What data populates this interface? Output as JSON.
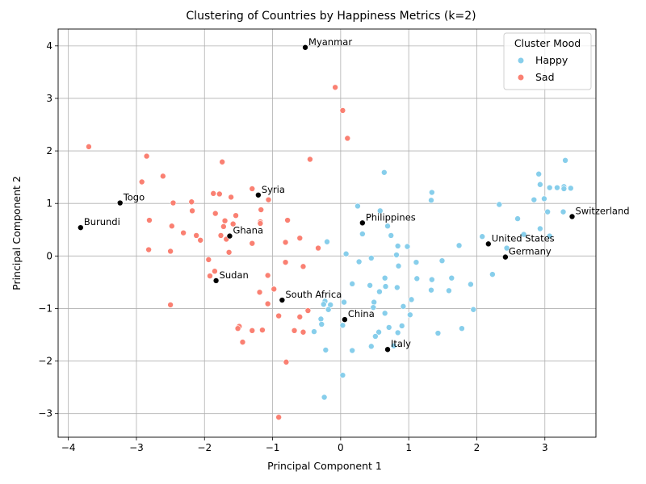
{
  "chart_data": {
    "type": "scatter",
    "title": "Clustering of Countries by Happiness Metrics (k=2)",
    "xlabel": "Principal Component 1",
    "ylabel": "Principal Component 2",
    "xlim": [
      -4.15,
      3.75
    ],
    "ylim": [
      -3.45,
      4.32
    ],
    "xticks": [
      -4,
      -3,
      -2,
      -1,
      0,
      1,
      2,
      3
    ],
    "yticks": [
      -3,
      -2,
      -1,
      0,
      1,
      2,
      3,
      4
    ],
    "grid": true,
    "legend": {
      "title": "Cluster Mood",
      "placement": "upper right"
    },
    "colors": {
      "Happy": "#87ceeb",
      "Sad": "#fa8072",
      "annotated": "#000000"
    },
    "series": [
      {
        "name": "Happy",
        "color": "#87ceeb",
        "points": [
          [
            0.64,
            1.59
          ],
          [
            0.58,
            0.86
          ],
          [
            0.25,
            0.95
          ],
          [
            0.32,
            0.42
          ],
          [
            -0.2,
            0.27
          ],
          [
            0.08,
            0.04
          ],
          [
            0.27,
            -0.11
          ],
          [
            0.69,
            0.57
          ],
          [
            0.74,
            0.39
          ],
          [
            0.84,
            0.19
          ],
          [
            0.98,
            0.18
          ],
          [
            0.82,
            0.02
          ],
          [
            0.45,
            -0.04
          ],
          [
            1.11,
            -0.12
          ],
          [
            0.85,
            -0.19
          ],
          [
            1.49,
            -0.09
          ],
          [
            1.34,
            1.21
          ],
          [
            1.33,
            1.06
          ],
          [
            1.74,
            0.2
          ],
          [
            1.12,
            -0.43
          ],
          [
            1.34,
            -0.45
          ],
          [
            1.63,
            -0.42
          ],
          [
            1.59,
            -0.66
          ],
          [
            1.33,
            -0.65
          ],
          [
            1.91,
            -0.54
          ],
          [
            2.23,
            -0.35
          ],
          [
            1.95,
            -1.02
          ],
          [
            1.78,
            -1.38
          ],
          [
            1.43,
            -1.47
          ],
          [
            0.65,
            -0.42
          ],
          [
            0.66,
            -0.58
          ],
          [
            0.83,
            -0.6
          ],
          [
            0.43,
            -0.56
          ],
          [
            0.57,
            -0.68
          ],
          [
            0.17,
            -0.53
          ],
          [
            0.49,
            -0.88
          ],
          [
            1.04,
            -0.83
          ],
          [
            0.48,
            -0.98
          ],
          [
            0.92,
            -0.96
          ],
          [
            0.65,
            -1.09
          ],
          [
            1.02,
            -1.12
          ],
          [
            0.71,
            -1.36
          ],
          [
            0.9,
            -1.33
          ],
          [
            0.56,
            -1.45
          ],
          [
            0.84,
            -1.46
          ],
          [
            0.51,
            -1.53
          ],
          [
            0.45,
            -1.72
          ],
          [
            0.78,
            -1.71
          ],
          [
            0.17,
            -1.8
          ],
          [
            -0.23,
            -0.86
          ],
          [
            -0.25,
            -0.92
          ],
          [
            -0.15,
            -0.93
          ],
          [
            0.05,
            -0.88
          ],
          [
            -0.18,
            -1.02
          ],
          [
            -0.29,
            -1.2
          ],
          [
            -0.28,
            -1.3
          ],
          [
            0.03,
            -1.32
          ],
          [
            -0.39,
            -1.44
          ],
          [
            -0.22,
            -1.79
          ],
          [
            0.03,
            -2.27
          ],
          [
            -0.24,
            -2.69
          ],
          [
            2.33,
            0.98
          ],
          [
            2.6,
            0.71
          ],
          [
            2.08,
            0.37
          ],
          [
            2.44,
            0.15
          ],
          [
            2.69,
            0.41
          ],
          [
            2.84,
            1.07
          ],
          [
            2.99,
            1.09
          ],
          [
            3.04,
            0.84
          ],
          [
            2.91,
            1.56
          ],
          [
            2.93,
            1.36
          ],
          [
            3.07,
            1.3
          ],
          [
            3.18,
            1.3
          ],
          [
            3.28,
            1.32
          ],
          [
            3.28,
            1.28
          ],
          [
            3.38,
            1.29
          ],
          [
            3.3,
            1.82
          ],
          [
            3.27,
            0.84
          ],
          [
            2.93,
            0.52
          ],
          [
            3.07,
            0.38
          ]
        ]
      },
      {
        "name": "Sad",
        "color": "#fa8072",
        "points": [
          [
            -3.7,
            2.08
          ],
          [
            -2.85,
            1.9
          ],
          [
            -2.92,
            1.41
          ],
          [
            -2.61,
            1.52
          ],
          [
            -2.46,
            1.01
          ],
          [
            -2.19,
            1.03
          ],
          [
            -2.18,
            0.86
          ],
          [
            -1.74,
            1.79
          ],
          [
            -1.87,
            1.19
          ],
          [
            -1.78,
            1.18
          ],
          [
            -1.61,
            1.12
          ],
          [
            -1.3,
            1.28
          ],
          [
            -1.06,
            1.07
          ],
          [
            -1.84,
            0.81
          ],
          [
            -1.7,
            0.67
          ],
          [
            -1.58,
            0.61
          ],
          [
            -1.54,
            0.77
          ],
          [
            -1.72,
            0.56
          ],
          [
            -1.76,
            0.39
          ],
          [
            -1.68,
            0.32
          ],
          [
            -1.64,
            0.07
          ],
          [
            -1.17,
            0.88
          ],
          [
            -1.18,
            0.65
          ],
          [
            -1.18,
            0.62
          ],
          [
            -0.78,
            0.68
          ],
          [
            -2.81,
            0.68
          ],
          [
            -2.48,
            0.57
          ],
          [
            -2.31,
            0.44
          ],
          [
            -2.12,
            0.39
          ],
          [
            -2.06,
            0.3
          ],
          [
            -2.82,
            0.12
          ],
          [
            -2.5,
            0.09
          ],
          [
            -1.3,
            0.24
          ],
          [
            -0.81,
            0.26
          ],
          [
            -0.6,
            0.34
          ],
          [
            -0.33,
            0.15
          ],
          [
            -0.81,
            -0.12
          ],
          [
            -0.55,
            -0.2
          ],
          [
            -1.94,
            -0.07
          ],
          [
            -1.85,
            -0.29
          ],
          [
            -1.92,
            -0.38
          ],
          [
            -1.07,
            -0.37
          ],
          [
            -0.98,
            -0.63
          ],
          [
            -1.19,
            -0.69
          ],
          [
            -1.07,
            -0.91
          ],
          [
            -2.5,
            -0.93
          ],
          [
            -0.48,
            -1.04
          ],
          [
            -0.91,
            -1.14
          ],
          [
            -0.6,
            -1.16
          ],
          [
            -1.49,
            -1.34
          ],
          [
            -1.51,
            -1.38
          ],
          [
            -1.3,
            -1.42
          ],
          [
            -1.15,
            -1.41
          ],
          [
            -0.68,
            -1.42
          ],
          [
            -0.55,
            -1.45
          ],
          [
            -1.44,
            -1.64
          ],
          [
            -0.8,
            -2.02
          ],
          [
            -0.91,
            -3.07
          ],
          [
            -0.45,
            1.84
          ],
          [
            -0.08,
            3.21
          ],
          [
            0.03,
            2.77
          ],
          [
            0.1,
            2.24
          ]
        ]
      },
      {
        "name": "",
        "color": "#000000",
        "points": [
          [
            -3.82,
            0.54
          ],
          [
            -3.24,
            1.01
          ],
          [
            -1.83,
            -0.47
          ],
          [
            -1.63,
            0.38
          ],
          [
            -1.21,
            1.16
          ],
          [
            -0.86,
            -0.84
          ],
          [
            -0.52,
            3.97
          ],
          [
            0.06,
            -1.21
          ],
          [
            0.32,
            0.63
          ],
          [
            0.69,
            -1.78
          ],
          [
            2.17,
            0.23
          ],
          [
            2.42,
            -0.02
          ],
          [
            3.4,
            0.75
          ]
        ]
      }
    ],
    "annotations": [
      {
        "label": "Burundi",
        "x": -3.82,
        "y": 0.54
      },
      {
        "label": "Togo",
        "x": -3.24,
        "y": 1.01
      },
      {
        "label": "Sudan",
        "x": -1.83,
        "y": -0.47
      },
      {
        "label": "Ghana",
        "x": -1.63,
        "y": 0.38
      },
      {
        "label": "Syria",
        "x": -1.21,
        "y": 1.16
      },
      {
        "label": "South Africa",
        "x": -0.86,
        "y": -0.84
      },
      {
        "label": "Myanmar",
        "x": -0.52,
        "y": 3.97
      },
      {
        "label": "China",
        "x": 0.06,
        "y": -1.21
      },
      {
        "label": "Philippines",
        "x": 0.32,
        "y": 0.63
      },
      {
        "label": "Italy",
        "x": 0.69,
        "y": -1.78
      },
      {
        "label": "United States",
        "x": 2.17,
        "y": 0.23
      },
      {
        "label": "Germany",
        "x": 2.42,
        "y": -0.02
      },
      {
        "label": "Switzerland",
        "x": 3.4,
        "y": 0.75
      }
    ]
  }
}
